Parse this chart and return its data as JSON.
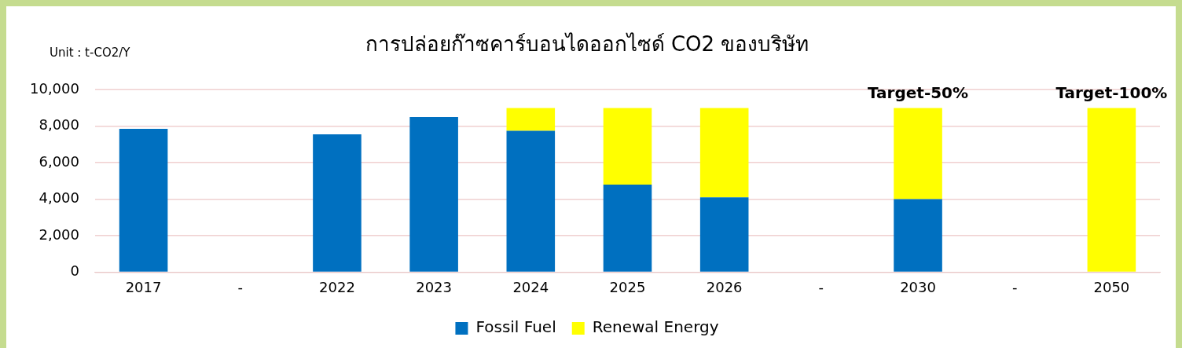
{
  "chart_data": {
    "type": "bar",
    "title": "การปล่อยก๊าซคาร์บอนไดออกไซด์ CO2 ของบริษัท",
    "ylabel": "Unit : t-CO2/Y",
    "categories": [
      "2017",
      "-",
      "2022",
      "2023",
      "2024",
      "2025",
      "2026",
      "-",
      "2030",
      "-",
      "2050"
    ],
    "series": [
      {
        "name": "Fossil Fuel",
        "color": "#0070c0",
        "values": [
          7850,
          null,
          7550,
          8500,
          7750,
          4800,
          4100,
          null,
          4000,
          null,
          null
        ]
      },
      {
        "name": "Renewal Energy",
        "color": "#ffff00",
        "values": [
          null,
          null,
          null,
          null,
          1250,
          4200,
          4900,
          null,
          5000,
          null,
          9000
        ]
      }
    ],
    "stacked": true,
    "ylim": [
      0,
      10000
    ],
    "yticks": [
      0,
      {
        "value": 2000,
        "label": "2,000"
      },
      {
        "value": 4000,
        "label": "4,000"
      },
      {
        "value": 6000,
        "label": "6,000"
      },
      {
        "value": 8000,
        "label": "8,000"
      },
      {
        "value": 10000,
        "label": "10,000"
      }
    ],
    "grid": "y",
    "legend": "bottom",
    "annotations": [
      {
        "text": "Target-50%",
        "x": "2030",
        "y": 9000
      },
      {
        "text": "Target-100%",
        "x": "2050",
        "y": 9000
      }
    ]
  }
}
